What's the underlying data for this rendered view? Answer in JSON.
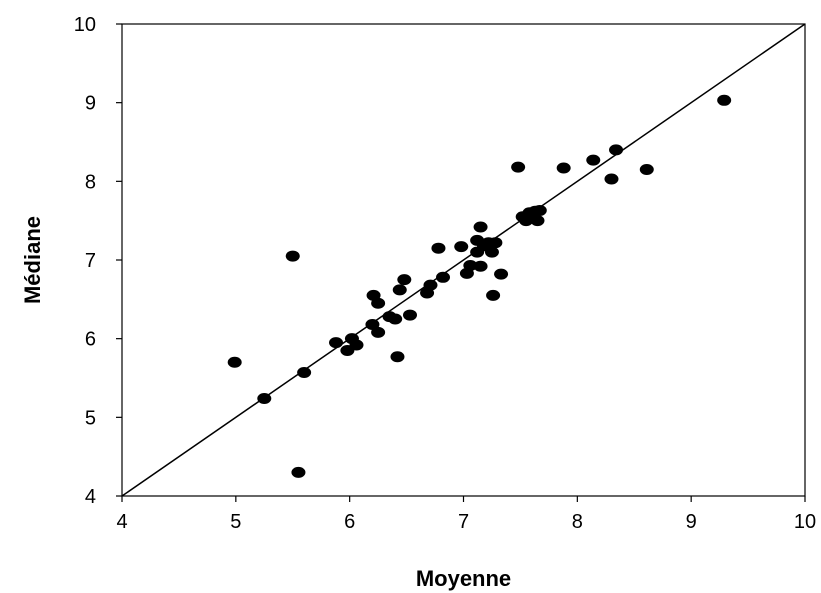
{
  "chart_data": {
    "type": "scatter",
    "xlabel": "Moyenne",
    "ylabel": "Médiane",
    "xlim": [
      4,
      10
    ],
    "ylim": [
      4,
      10
    ],
    "x_ticks": [
      "4",
      "5",
      "6",
      "7",
      "8",
      "9",
      "10"
    ],
    "y_ticks": [
      "4",
      "5",
      "6",
      "7",
      "8",
      "9",
      "10"
    ],
    "grid": false,
    "reference_line": {
      "from": [
        4,
        4
      ],
      "to": [
        10,
        10
      ]
    },
    "points": [
      {
        "x": 4.99,
        "y": 5.7
      },
      {
        "x": 5.25,
        "y": 5.24
      },
      {
        "x": 5.5,
        "y": 7.05
      },
      {
        "x": 5.55,
        "y": 4.3
      },
      {
        "x": 5.6,
        "y": 5.57
      },
      {
        "x": 5.88,
        "y": 5.95
      },
      {
        "x": 5.98,
        "y": 5.85
      },
      {
        "x": 6.02,
        "y": 6.0
      },
      {
        "x": 6.06,
        "y": 5.92
      },
      {
        "x": 6.2,
        "y": 6.18
      },
      {
        "x": 6.21,
        "y": 6.55
      },
      {
        "x": 6.25,
        "y": 6.45
      },
      {
        "x": 6.25,
        "y": 6.08
      },
      {
        "x": 6.35,
        "y": 6.28
      },
      {
        "x": 6.4,
        "y": 6.25
      },
      {
        "x": 6.42,
        "y": 5.77
      },
      {
        "x": 6.44,
        "y": 6.62
      },
      {
        "x": 6.48,
        "y": 6.75
      },
      {
        "x": 6.53,
        "y": 6.3
      },
      {
        "x": 6.68,
        "y": 6.58
      },
      {
        "x": 6.71,
        "y": 6.68
      },
      {
        "x": 6.78,
        "y": 7.15
      },
      {
        "x": 6.82,
        "y": 6.78
      },
      {
        "x": 6.98,
        "y": 7.17
      },
      {
        "x": 7.03,
        "y": 6.83
      },
      {
        "x": 7.06,
        "y": 6.93
      },
      {
        "x": 7.12,
        "y": 7.25
      },
      {
        "x": 7.12,
        "y": 7.1
      },
      {
        "x": 7.15,
        "y": 7.42
      },
      {
        "x": 7.15,
        "y": 6.92
      },
      {
        "x": 7.18,
        "y": 7.18
      },
      {
        "x": 7.22,
        "y": 7.22
      },
      {
        "x": 7.25,
        "y": 7.1
      },
      {
        "x": 7.26,
        "y": 6.55
      },
      {
        "x": 7.28,
        "y": 7.22
      },
      {
        "x": 7.33,
        "y": 6.82
      },
      {
        "x": 7.48,
        "y": 8.18
      },
      {
        "x": 7.52,
        "y": 7.55
      },
      {
        "x": 7.55,
        "y": 7.5
      },
      {
        "x": 7.58,
        "y": 7.6
      },
      {
        "x": 7.63,
        "y": 7.62
      },
      {
        "x": 7.65,
        "y": 7.5
      },
      {
        "x": 7.67,
        "y": 7.63
      },
      {
        "x": 7.88,
        "y": 8.17
      },
      {
        "x": 8.14,
        "y": 8.27
      },
      {
        "x": 8.3,
        "y": 8.03
      },
      {
        "x": 8.34,
        "y": 8.4
      },
      {
        "x": 8.61,
        "y": 8.15
      },
      {
        "x": 9.29,
        "y": 9.03
      }
    ]
  }
}
